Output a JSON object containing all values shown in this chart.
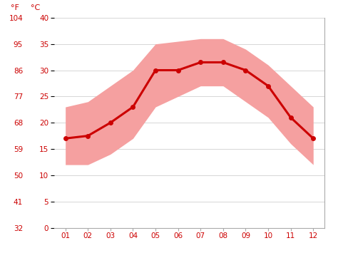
{
  "months": [
    1,
    2,
    3,
    4,
    5,
    6,
    7,
    8,
    9,
    10,
    11,
    12
  ],
  "month_labels": [
    "01",
    "02",
    "03",
    "04",
    "05",
    "06",
    "07",
    "08",
    "09",
    "10",
    "11",
    "12"
  ],
  "avg_temp_c": [
    17,
    17.5,
    20,
    23,
    30,
    30,
    31.5,
    31.5,
    30,
    27,
    21,
    17
  ],
  "max_temp_c": [
    23,
    24,
    27,
    30,
    35,
    35.5,
    36,
    36,
    34,
    31,
    27,
    23
  ],
  "min_temp_c": [
    12,
    12,
    14,
    17,
    23,
    25,
    27,
    27,
    24,
    21,
    16,
    12
  ],
  "line_color": "#cc0000",
  "band_color": "#f5a0a0",
  "bg_color": "#ffffff",
  "grid_color": "#d0d0d0",
  "tick_color": "#cc0000",
  "ticks_c": [
    0,
    5,
    10,
    15,
    20,
    25,
    30,
    35,
    40
  ],
  "ticks_f": [
    32,
    41,
    50,
    59,
    68,
    77,
    86,
    95,
    104
  ],
  "ylim_c": [
    0,
    40
  ],
  "label_f": "°F",
  "label_c": "°C",
  "line_width": 2.2,
  "marker": "o",
  "marker_size": 4
}
